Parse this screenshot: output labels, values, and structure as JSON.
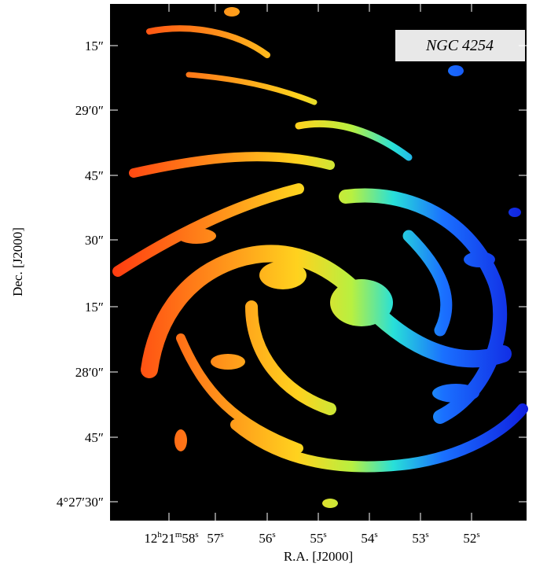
{
  "label": "NGC 4254",
  "y_axis": {
    "title": "Dec. [J2000]",
    "ticks": [
      "15″",
      "29′0″",
      "45″",
      "30″",
      "15″",
      "28′0″",
      "45″",
      "4°27′30″"
    ]
  },
  "x_axis": {
    "title": "R.A. [J2000]",
    "ticks": [
      [
        "12",
        "h",
        "21",
        "m",
        "58",
        "s"
      ],
      [
        "57",
        "s"
      ],
      [
        "56",
        "s"
      ],
      [
        "55",
        "s"
      ],
      [
        "54",
        "s"
      ],
      [
        "53",
        "s"
      ],
      [
        "52",
        "s"
      ]
    ]
  }
}
